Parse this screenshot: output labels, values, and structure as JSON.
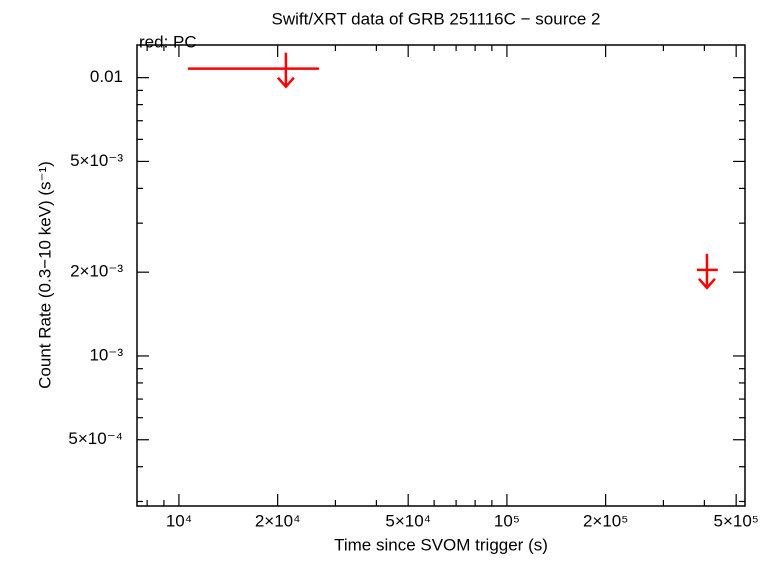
{
  "chart_data": {
    "type": "scatter",
    "title": "Swift/XRT data of GRB 251116C − source 2",
    "note": "red: PC",
    "x_label": "Time since SVOM trigger (s)",
    "y_label": "Count Rate (0.3−10 keV) (s⁻¹)",
    "x_log": true,
    "y_log": true,
    "xlim": [
      7450,
      532000
    ],
    "ylim": [
      0.000289,
      0.0131
    ],
    "xticks": [
      {
        "value": 10000,
        "label": "10⁴"
      },
      {
        "value": 20000,
        "label": "2×10⁴"
      },
      {
        "value": 50000,
        "label": "5×10⁴"
      },
      {
        "value": 100000,
        "label": "10⁵"
      },
      {
        "value": 200000,
        "label": "2×10⁵"
      },
      {
        "value": 500000,
        "label": "5×10⁵"
      }
    ],
    "xminor": [
      8000,
      9000,
      30000,
      40000,
      60000,
      70000,
      80000,
      90000,
      300000,
      400000
    ],
    "yticks": [
      0.01,
      {
        "value": 0.005,
        "label": "5×10⁻³"
      },
      {
        "value": 0.002,
        "label": "2×10⁻³"
      },
      {
        "value": 0.001,
        "label": "10⁻³"
      },
      {
        "value": 0.0005,
        "label": "5×10⁻⁴"
      }
    ],
    "yminor": [
      0.009,
      0.008,
      0.007,
      0.006,
      0.004,
      0.003,
      0.0009,
      0.0008,
      0.0007,
      0.0006,
      0.0004,
      0.0003
    ],
    "series": [
      {
        "color": "#ff0000",
        "upper_limit": true,
        "x": [
          21190,
          407300
        ],
        "x_start": [
          10650,
          379500
        ],
        "x_end": [
          26720,
          439500
        ],
        "values": [
          0.01077,
          0.002039
        ]
      }
    ]
  }
}
